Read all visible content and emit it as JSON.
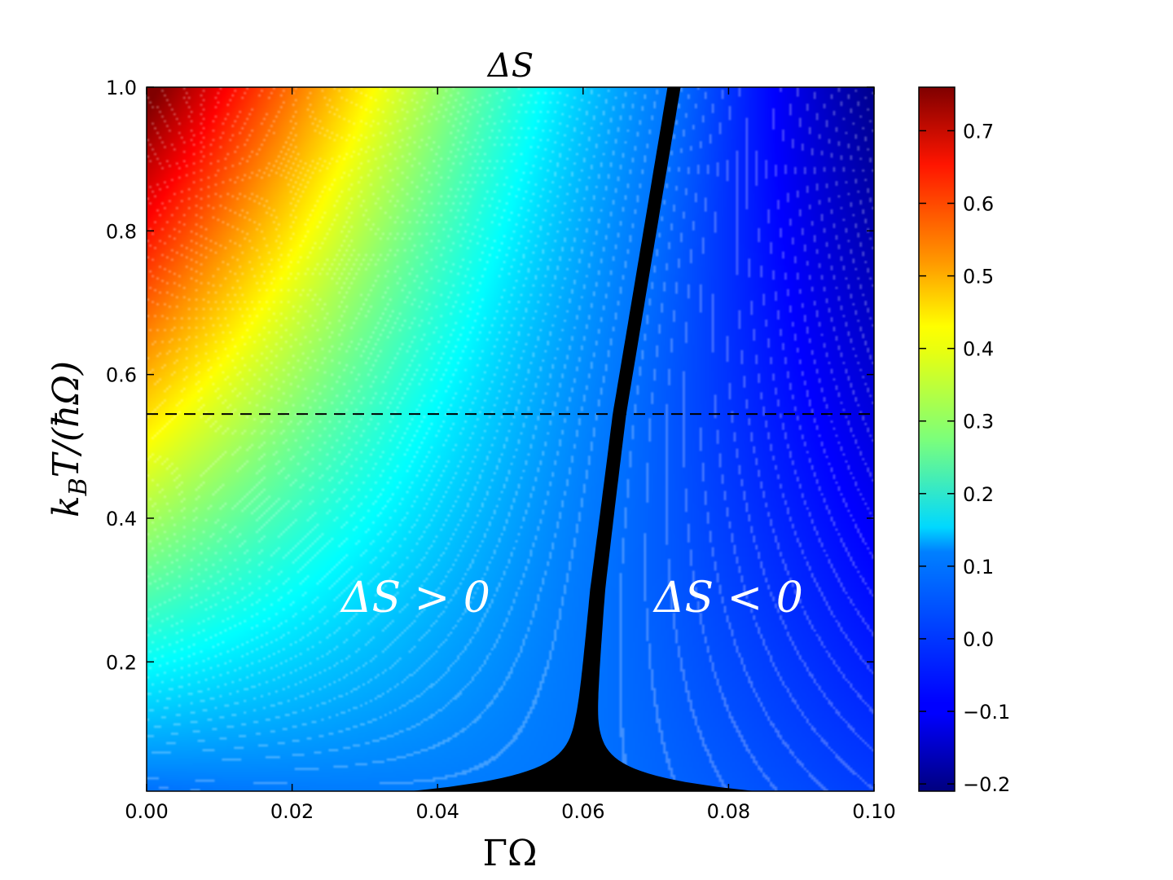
{
  "chart_data": {
    "type": "heatmap",
    "title": "ΔS",
    "xlabel": "ΓΩ",
    "ylabel": "k_B T/(ħΩ)",
    "xlim": [
      0.0,
      0.1
    ],
    "ylim": [
      0.02,
      1.0
    ],
    "x_ticks": [
      "0.00",
      "0.02",
      "0.04",
      "0.06",
      "0.08",
      "0.10"
    ],
    "x_tick_values": [
      0.0,
      0.02,
      0.04,
      0.06,
      0.08,
      0.1
    ],
    "y_ticks": [
      "0.2",
      "0.4",
      "0.6",
      "0.8",
      "1.0"
    ],
    "y_tick_values": [
      0.2,
      0.4,
      0.6,
      0.8,
      1.0
    ],
    "colorbar": {
      "colormap": "jet",
      "range": [
        -0.21,
        0.76
      ],
      "ticks": [
        "0.7",
        "0.6",
        "0.5",
        "0.4",
        "0.3",
        "0.2",
        "0.1",
        "0.0",
        "−0.1",
        "−0.2"
      ],
      "tick_values": [
        0.7,
        0.6,
        0.5,
        0.4,
        0.3,
        0.2,
        0.1,
        0.0,
        -0.1,
        -0.2
      ]
    },
    "reference_line": {
      "style": "dashed",
      "y": 0.545
    },
    "zero_region": {
      "color": "#000000",
      "center_boundary": [
        [
          0.06,
          0.02
        ],
        [
          0.0605,
          0.12
        ],
        [
          0.062,
          0.3
        ],
        [
          0.065,
          0.545
        ],
        [
          0.0725,
          1.0
        ]
      ]
    },
    "annotations": [
      {
        "text": "ΔS > 0",
        "x": 0.037,
        "y": 0.29
      },
      {
        "text": "ΔS < 0",
        "x": 0.08,
        "y": 0.29
      }
    ],
    "grid": false,
    "legend": "none"
  }
}
